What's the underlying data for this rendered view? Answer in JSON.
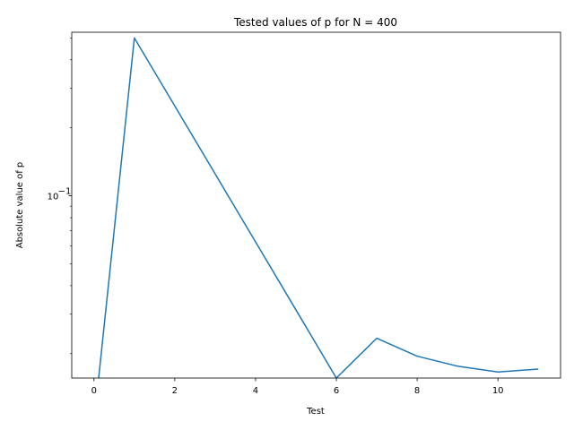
{
  "chart_data": {
    "type": "line",
    "title": "Tested values of p for N = 400",
    "xlabel": "Test",
    "ylabel": "Absolute value of p",
    "yscale": "log",
    "grid": false,
    "xlim": [
      -0.55,
      11.55
    ],
    "ylim": [
      0.0156,
      0.53
    ],
    "x_ticks": [
      0,
      2,
      4,
      6,
      8,
      10
    ],
    "x_tick_labels": [
      "0",
      "2",
      "4",
      "6",
      "8",
      "10"
    ],
    "y_ticks": [
      0.1
    ],
    "y_tick_labels": [
      "10",
      "−1"
    ],
    "series": [
      {
        "color": "#1f77b4",
        "x": [
          0,
          1,
          2,
          3,
          4,
          5,
          6,
          7,
          8,
          9,
          10,
          11
        ],
        "y": [
          0.0,
          0.5,
          0.25,
          0.125,
          0.0625,
          0.03125,
          0.0156,
          0.0234,
          0.0195,
          0.0176,
          0.0166,
          0.0171
        ]
      }
    ]
  }
}
